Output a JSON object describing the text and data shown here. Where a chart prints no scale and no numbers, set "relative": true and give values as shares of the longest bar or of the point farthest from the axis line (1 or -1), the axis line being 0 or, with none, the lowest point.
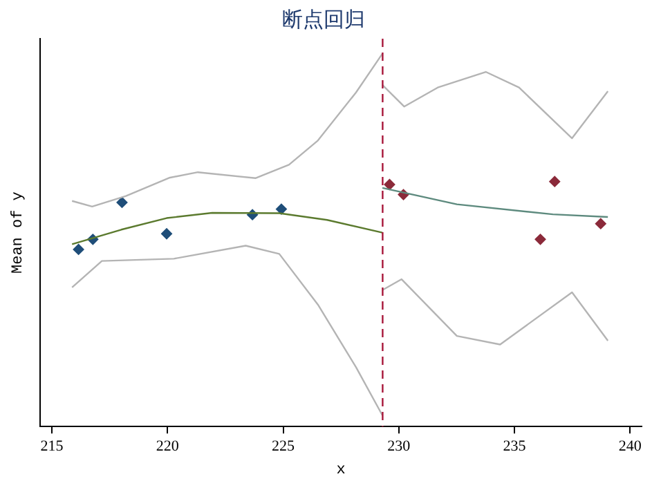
{
  "chart_data": {
    "type": "scatter",
    "title": "断点回归",
    "xlabel": "x",
    "ylabel": "Mean of y",
    "relative": true,
    "legend": false,
    "xlim": [
      214.5,
      240.5
    ],
    "xticks": [
      215,
      220,
      225,
      230,
      235,
      240
    ],
    "ref_lines": [
      {
        "axis": "x",
        "value": 229.3,
        "color": "#a8173a",
        "line_style": "dashed"
      }
    ],
    "series": [
      {
        "type": "line",
        "color": "#b4b4b4",
        "marker": "none",
        "x": [
          215.87,
          216.74,
          218.2,
          220.07,
          221.31,
          223.8,
          225.25,
          226.5,
          228.15,
          229.29
        ],
        "values": [
          0.605,
          0.59,
          0.618,
          0.667,
          0.682,
          0.666,
          0.702,
          0.767,
          0.896,
          1.0
        ]
      },
      {
        "type": "line",
        "color": "#b4b4b4",
        "marker": "none",
        "x": [
          215.87,
          217.16,
          220.27,
          223.38,
          224.83,
          226.5,
          228.15,
          229.29
        ],
        "values": [
          0.373,
          0.444,
          0.45,
          0.485,
          0.463,
          0.327,
          0.159,
          0.03
        ]
      },
      {
        "type": "line",
        "color": "#b4b4b4",
        "marker": "none",
        "x": [
          229.29,
          230.23,
          231.68,
          233.76,
          235.2,
          237.49,
          239.04
        ],
        "values": [
          0.916,
          0.858,
          0.909,
          0.951,
          0.909,
          0.773,
          0.899
        ]
      },
      {
        "type": "line",
        "color": "#b4b4b4",
        "marker": "none",
        "x": [
          229.29,
          230.12,
          232.51,
          234.38,
          237.49,
          239.04
        ],
        "values": [
          0.366,
          0.395,
          0.243,
          0.22,
          0.36,
          0.23
        ]
      },
      {
        "type": "line",
        "color": "#5b7a2e",
        "marker": "none",
        "x": [
          215.87,
          218.0,
          219.96,
          221.93,
          224.83,
          226.9,
          229.29
        ],
        "values": [
          0.489,
          0.528,
          0.559,
          0.573,
          0.572,
          0.554,
          0.52
        ]
      },
      {
        "type": "line",
        "color": "#5d8a7e",
        "marker": "none",
        "x": [
          229.29,
          232.51,
          236.66,
          239.04
        ],
        "values": [
          0.64,
          0.596,
          0.569,
          0.562
        ]
      },
      {
        "color": "#1f4e79",
        "marker": "diamond",
        "x": [
          216.15,
          216.77,
          218.03,
          219.96,
          223.67,
          224.92
        ],
        "values": [
          0.475,
          0.502,
          0.601,
          0.517,
          0.568,
          0.583
        ]
      },
      {
        "color": "#8b2a3a",
        "marker": "diamond",
        "x": [
          229.6,
          230.2,
          236.12,
          236.74,
          238.73
        ],
        "values": [
          0.649,
          0.622,
          0.502,
          0.657,
          0.544
        ]
      }
    ]
  }
}
